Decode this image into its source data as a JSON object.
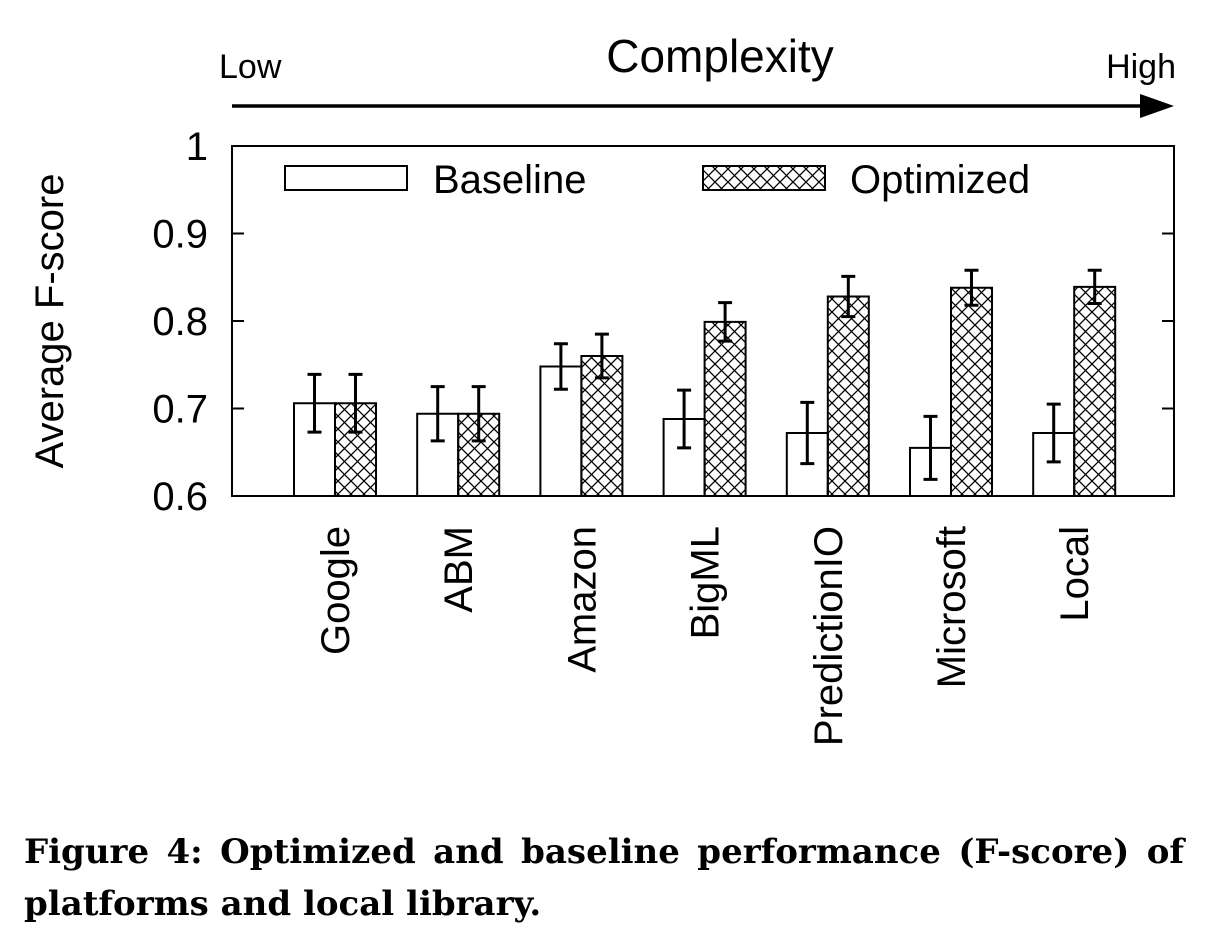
{
  "complexity": {
    "label": "Complexity",
    "low": "Low",
    "high": "High"
  },
  "chart_data": {
    "type": "bar",
    "ylabel": "Average F-score",
    "ylim": [
      0.6,
      1.0
    ],
    "yticks": [
      "0.6",
      "0.7",
      "0.8",
      "0.9",
      "1"
    ],
    "categories": [
      "Google",
      "ABM",
      "Amazon",
      "BigML",
      "PredictionIO",
      "Microsoft",
      "Local"
    ],
    "series": [
      {
        "name": "Baseline",
        "pattern": "none",
        "values": [
          0.706,
          0.694,
          0.748,
          0.688,
          0.672,
          0.655,
          0.672
        ],
        "errors": [
          0.033,
          0.031,
          0.026,
          0.033,
          0.035,
          0.036,
          0.033
        ]
      },
      {
        "name": "Optimized",
        "pattern": "crosshatch",
        "values": [
          0.706,
          0.694,
          0.76,
          0.799,
          0.828,
          0.838,
          0.839
        ],
        "errors": [
          0.033,
          0.031,
          0.025,
          0.022,
          0.023,
          0.02,
          0.019
        ]
      }
    ],
    "legend_position": "top",
    "grid": false,
    "colors": {
      "bar_fill": "#ffffff",
      "stroke": "#000000"
    }
  },
  "caption": "Figure 4: Optimized and baseline performance (F-score) of platforms and local library."
}
